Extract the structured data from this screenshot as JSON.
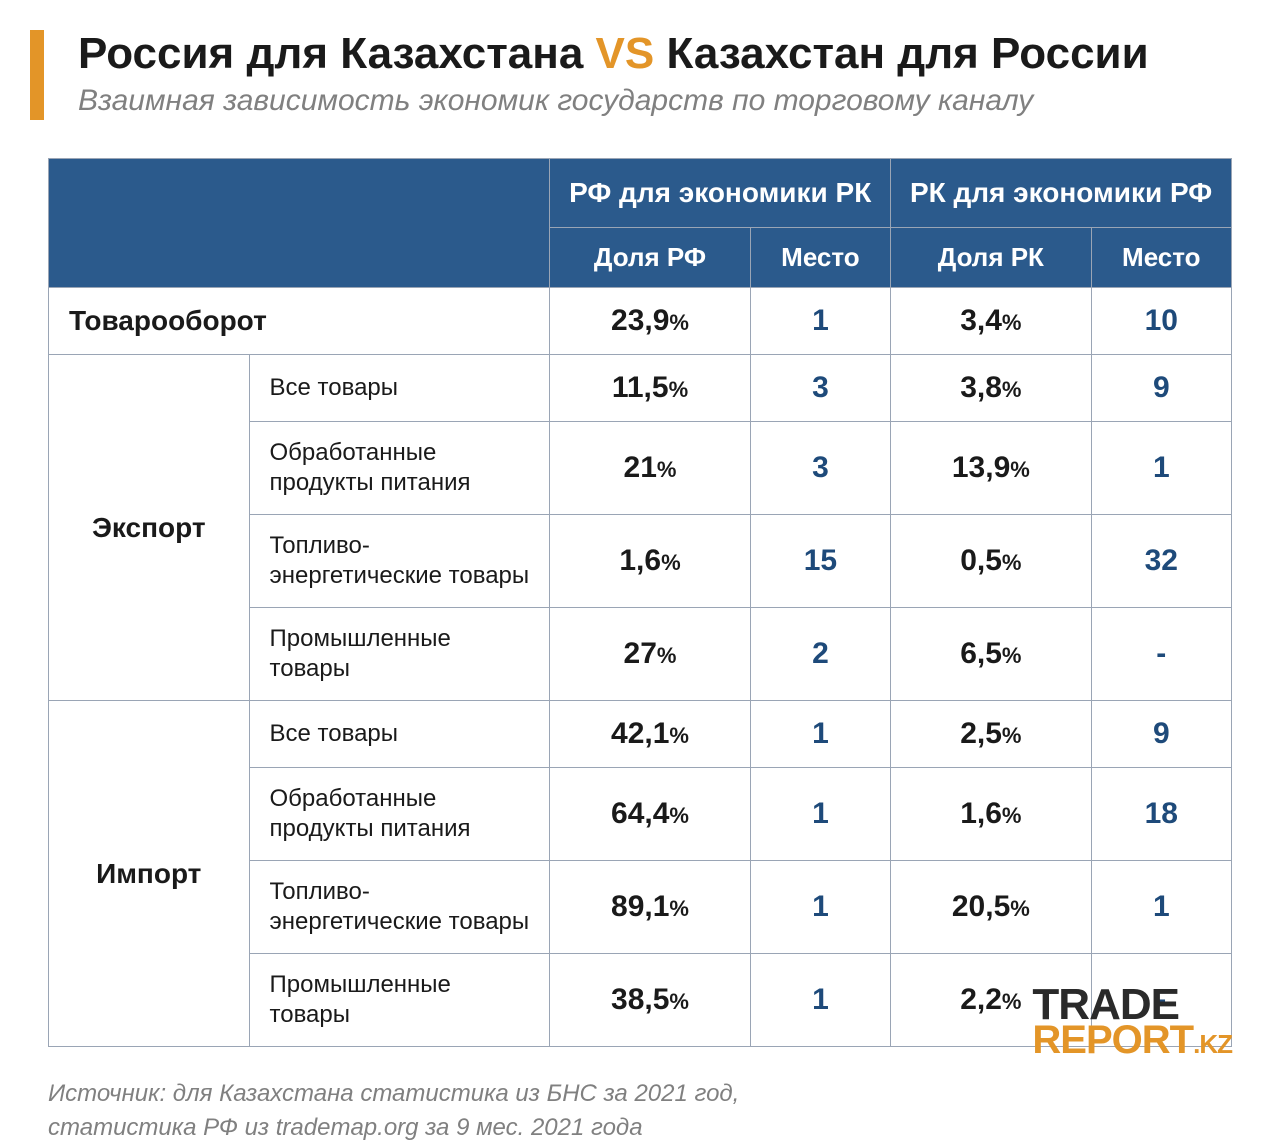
{
  "colors": {
    "accent": "#e39528",
    "header_bg": "#2b5a8c",
    "header_text": "#ffffff",
    "border": "#9aa5b5",
    "text": "#1a1a1a",
    "place_text": "#1e4a7a",
    "muted": "#808080",
    "bg": "#ffffff"
  },
  "title": {
    "part1": "Россия для Казахстана ",
    "vs": "VS",
    "part2": " Казахстан для России"
  },
  "subtitle": "Взаимная зависимость экономик государств по торговому каналу",
  "headers": {
    "group1": "РФ для экономики РК",
    "group2": "РК для экономики РФ",
    "share1": "Доля РФ",
    "place1": "Место",
    "share2": "Доля РК",
    "place2": "Место"
  },
  "rows": {
    "turnover": {
      "label": "Товарооборот",
      "share1": "23,9",
      "place1": "1",
      "share2": "3,4",
      "place2": "10"
    },
    "export_label": "Экспорт",
    "export": [
      {
        "label": "Все товары",
        "share1": "11,5",
        "place1": "3",
        "share2": "3,8",
        "place2": "9"
      },
      {
        "label": "Обработанные продукты питания",
        "share1": "21",
        "place1": "3",
        "share2": "13,9",
        "place2": "1"
      },
      {
        "label": "Топливо-энергетические товары",
        "share1": "1,6",
        "place1": "15",
        "share2": "0,5",
        "place2": "32"
      },
      {
        "label": "Промышленные товары",
        "share1": "27",
        "place1": "2",
        "share2": "6,5",
        "place2": "-"
      }
    ],
    "import_label": "Импорт",
    "import": [
      {
        "label": "Все товары",
        "share1": "42,1",
        "place1": "1",
        "share2": "2,5",
        "place2": "9"
      },
      {
        "label": "Обработанные продукты питания",
        "share1": "64,4",
        "place1": "1",
        "share2": "1,6",
        "place2": "18"
      },
      {
        "label": "Топливо-энергетические товары",
        "share1": "89,1",
        "place1": "1",
        "share2": "20,5",
        "place2": "1"
      },
      {
        "label": "Промышленные товары",
        "share1": "38,5",
        "place1": "1",
        "share2": "2,2",
        "place2": "-"
      }
    ]
  },
  "percent_sign": "%",
  "source": {
    "line1": "Источник: для Казахстана статистика из БНС за 2021 год,",
    "line2": "статистика РФ из trademap.org за 9 мес. 2021 года"
  },
  "logo": {
    "word1": "TRADE",
    "word2": "REPORT",
    "suffix": ".KZ",
    "tagline": ""
  }
}
